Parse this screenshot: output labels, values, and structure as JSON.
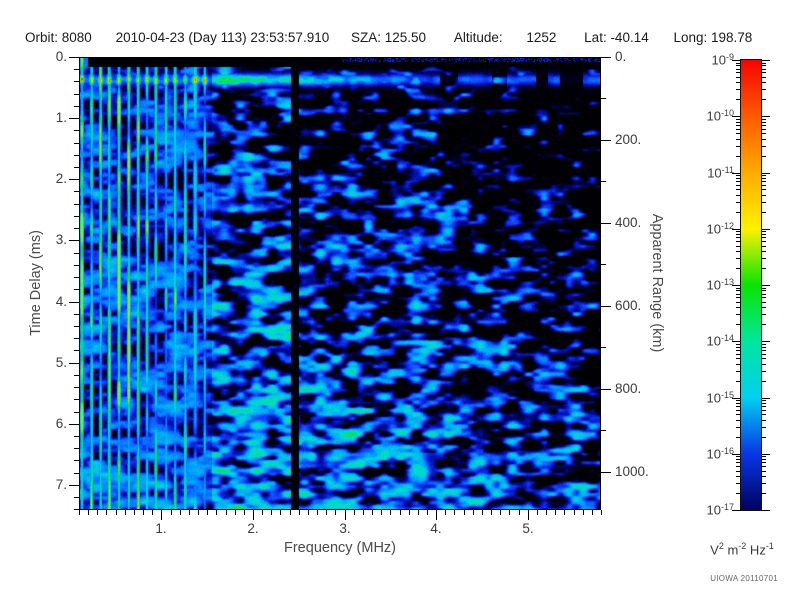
{
  "header": {
    "orbit": "Orbit: 8080",
    "datetime": "2010-04-23 (Day 113) 23:53:57.910",
    "sza": "SZA: 125.50",
    "altitude_label": "Altitude:",
    "altitude_value": "1252",
    "lat": "Lat: -40.14",
    "long": "Long: 198.78"
  },
  "watermark": "UIOWA 20110701",
  "chart_data": {
    "type": "heatmap",
    "xlabel": "Frequency (MHz)",
    "ylabel_left": "Time Delay (ms)",
    "ylabel_right": "Apparent Range (km)",
    "x_ticks": {
      "values": [
        1,
        2,
        3,
        4,
        5
      ],
      "labels": [
        "1.",
        "2.",
        "3.",
        "4.",
        "5."
      ],
      "minor_step": 0.1,
      "range": [
        0.1,
        5.8
      ]
    },
    "y_ticks": {
      "values": [
        0,
        1,
        2,
        3,
        4,
        5,
        6,
        7
      ],
      "labels": [
        "0.",
        "1.",
        "2.",
        "3.",
        "4.",
        "5.",
        "6.",
        "7."
      ],
      "minor_step": 0.2,
      "range": [
        0,
        7.41
      ]
    },
    "y2_ticks": {
      "values": [
        0,
        200,
        400,
        600,
        800,
        1000
      ],
      "labels": [
        "0.",
        "200.",
        "400.",
        "600.",
        "800.",
        "1000."
      ],
      "minor_step": 100,
      "range": [
        0,
        1092
      ]
    },
    "colorbar": {
      "scale": "log10",
      "exponents": [
        -9,
        -10,
        -11,
        -12,
        -13,
        -14,
        -15,
        -16,
        -17
      ],
      "decade_colors": [
        "#f60400",
        "#ff5a00",
        "#ffaa00",
        "#fdf200",
        "#0ae402",
        "#00e69e",
        "#00d0f0",
        "#0837e6",
        "#01015e"
      ],
      "unit_segments": [
        {
          "base": "V",
          "exp": "2"
        },
        {
          "base": "m",
          "exp": "-2"
        },
        {
          "base": "Hz",
          "exp": "-1"
        }
      ]
    },
    "features": {
      "background": "black, below 1e-17 V^2 m^-2 Hz^-1",
      "plasma_stripes": {
        "freq_range_mhz": [
          0.1,
          1.45
        ],
        "peak_level_exp": -13,
        "description": "bright vertical harmonic stripes spanning all time delays; green at lowest frequencies fading to cyan near 1.4 MHz, with a bright cyan stripe at ~1.3 MHz"
      },
      "surface_echo_band": {
        "delay_ms": [
          0.15,
          0.45
        ],
        "peak_level_exp": -13,
        "description": "strong horizontal echo band just below zero delay; green out to ~2 MHz, cyan to ~2.8 MHz, then faint blue dashes to the right edge"
      },
      "absorption_gap": {
        "freq_mhz": 2.45,
        "description": "narrow black vertical gap with no signal, full height"
      },
      "diffuse_noise": {
        "level_exp_range": [
          -17,
          -15
        ],
        "description": "speckled horizontally-stretched blue blobs; denser at low frequency and long delay, sparse/black near upper right"
      }
    }
  }
}
